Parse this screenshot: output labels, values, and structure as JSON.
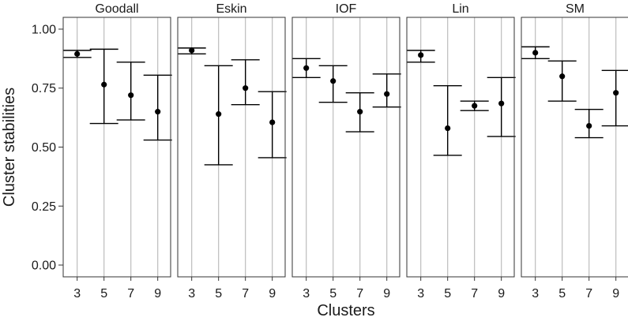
{
  "chart_data": {
    "type": "errorbar",
    "xlabel": "Clusters",
    "ylabel": "Cluster stabilities",
    "ylim": [
      -0.05,
      1.05
    ],
    "y_ticks": [
      0.0,
      0.25,
      0.5,
      0.75,
      1.0
    ],
    "y_tick_labels": [
      "0.00",
      "0.25",
      "0.50",
      "0.75",
      "1.00"
    ],
    "x_categories": [
      "3",
      "5",
      "7",
      "9"
    ],
    "grid": "vertical",
    "colors": {
      "point": "#000000",
      "errorbar": "#000000",
      "grid": "#bdbdbd",
      "frame": "#333333"
    },
    "panels": [
      {
        "name": "Goodall",
        "points": [
          {
            "x": "3",
            "y": 0.895,
            "lower": 0.88,
            "upper": 0.91
          },
          {
            "x": "5",
            "y": 0.765,
            "lower": 0.6,
            "upper": 0.915
          },
          {
            "x": "7",
            "y": 0.72,
            "lower": 0.615,
            "upper": 0.86
          },
          {
            "x": "9",
            "y": 0.65,
            "lower": 0.53,
            "upper": 0.805
          }
        ]
      },
      {
        "name": "Eskin",
        "points": [
          {
            "x": "3",
            "y": 0.91,
            "lower": 0.895,
            "upper": 0.92
          },
          {
            "x": "5",
            "y": 0.64,
            "lower": 0.425,
            "upper": 0.845
          },
          {
            "x": "7",
            "y": 0.75,
            "lower": 0.68,
            "upper": 0.87
          },
          {
            "x": "9",
            "y": 0.605,
            "lower": 0.455,
            "upper": 0.735
          }
        ]
      },
      {
        "name": "IOF",
        "points": [
          {
            "x": "3",
            "y": 0.835,
            "lower": 0.795,
            "upper": 0.875
          },
          {
            "x": "5",
            "y": 0.78,
            "lower": 0.69,
            "upper": 0.845
          },
          {
            "x": "7",
            "y": 0.65,
            "lower": 0.565,
            "upper": 0.73
          },
          {
            "x": "9",
            "y": 0.725,
            "lower": 0.67,
            "upper": 0.81
          }
        ]
      },
      {
        "name": "Lin",
        "points": [
          {
            "x": "3",
            "y": 0.89,
            "lower": 0.86,
            "upper": 0.91
          },
          {
            "x": "5",
            "y": 0.58,
            "lower": 0.465,
            "upper": 0.76
          },
          {
            "x": "7",
            "y": 0.675,
            "lower": 0.655,
            "upper": 0.695
          },
          {
            "x": "9",
            "y": 0.685,
            "lower": 0.545,
            "upper": 0.795
          }
        ]
      },
      {
        "name": "SM",
        "points": [
          {
            "x": "3",
            "y": 0.9,
            "lower": 0.875,
            "upper": 0.925
          },
          {
            "x": "5",
            "y": 0.8,
            "lower": 0.695,
            "upper": 0.865
          },
          {
            "x": "7",
            "y": 0.59,
            "lower": 0.54,
            "upper": 0.66
          },
          {
            "x": "9",
            "y": 0.73,
            "lower": 0.59,
            "upper": 0.825
          }
        ]
      }
    ]
  }
}
